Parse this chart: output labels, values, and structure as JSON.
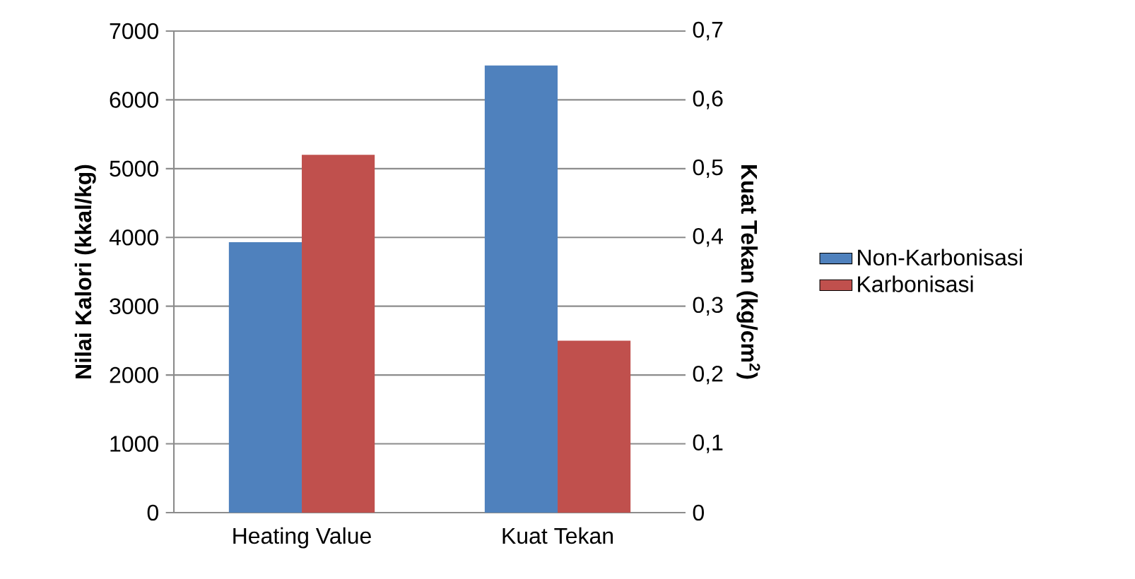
{
  "chart_data": {
    "type": "bar",
    "categories": [
      "Heating Value",
      "Kuat Tekan"
    ],
    "ylabel": "Nilai Kalori (kkal/kg)",
    "y2label": "Kuat Tekan (kg/cm$^{2}$)",
    "ylim": [
      0,
      7000
    ],
    "yticks": [
      0,
      1000,
      2000,
      3000,
      4000,
      5000,
      6000,
      7000
    ],
    "y2lim": [
      0,
      0.7
    ],
    "y2ticks": [
      0,
      {
        "value": 0.1,
        "label": "0,1"
      },
      {
        "value": 0.2,
        "label": "0,2"
      },
      {
        "value": 0.3,
        "label": "0,3"
      },
      {
        "value": 0.4,
        "label": "0,4"
      },
      {
        "value": 0.5,
        "label": "0,5"
      },
      {
        "value": 0.6,
        "label": "0,6"
      },
      {
        "value": 0.7,
        "label": "0,7"
      }
    ],
    "grid": "y",
    "legend": "right",
    "series": [
      {
        "name": "Non-Karbonisasi",
        "color": "#4f81bd",
        "values": [
          3930,
          null
        ]
      },
      {
        "name": "Karbonisasi",
        "color": "#c0504d",
        "values": [
          5200,
          null
        ]
      },
      {
        "color": "#4f81bd",
        "values": [
          null,
          0.65
        ],
        "axis": "y2"
      },
      {
        "color": "#c0504d",
        "values": [
          null,
          0.25
        ],
        "axis": "y2"
      }
    ]
  }
}
